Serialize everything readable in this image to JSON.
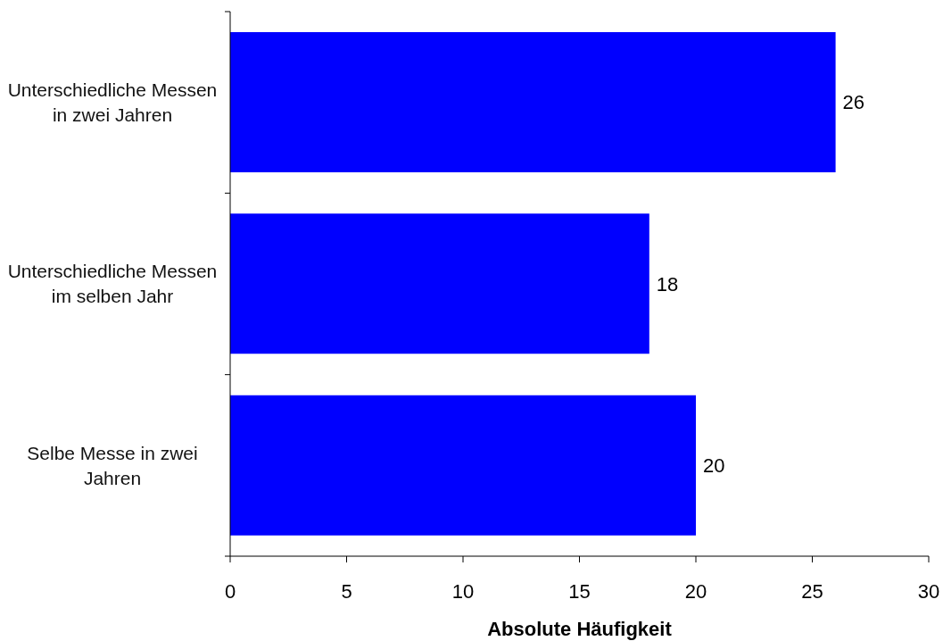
{
  "chart_data": {
    "type": "bar",
    "orientation": "horizontal",
    "xlabel": "Absolute Häufigkeit",
    "categories": [
      "Unterschiedliche Messen in zwei Jahren",
      "Unterschiedliche Messen im selben Jahr",
      "Selbe Messe in zwei Jahren"
    ],
    "values": [
      26,
      18,
      20
    ],
    "color": "#0000ff",
    "xlim": [
      0,
      30
    ],
    "xticks": [
      0,
      5,
      10,
      15,
      20,
      25,
      30
    ],
    "data_labels": true
  }
}
